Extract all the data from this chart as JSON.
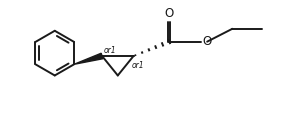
{
  "background_color": "#ffffff",
  "line_color": "#1a1a1a",
  "line_width": 1.4,
  "text_color": "#1a1a1a",
  "font_size": 7,
  "figsize": [
    2.9,
    1.24
  ],
  "dpi": 100,
  "or1_fontsize": 5.5,
  "xlim": [
    0,
    10
  ],
  "ylim": [
    0,
    4.28
  ]
}
